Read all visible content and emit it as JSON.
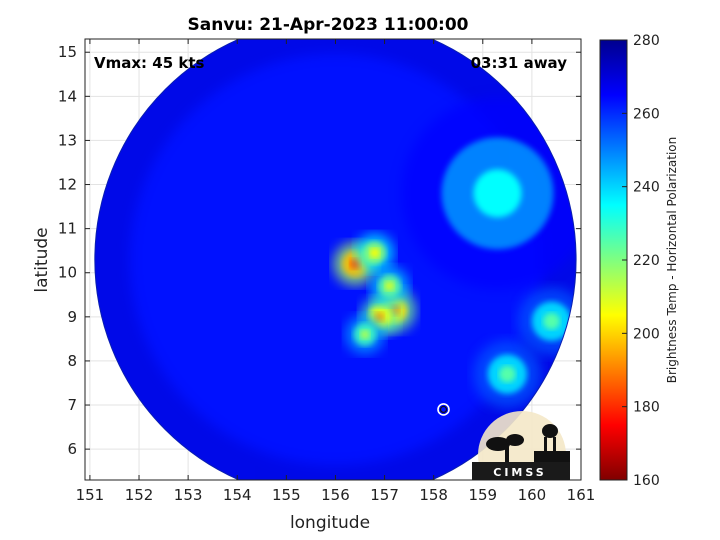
{
  "chart_data": {
    "type": "heatmap",
    "title": "Sanvu: 21-Apr-2023 11:00:00",
    "xlabel": "longitude",
    "ylabel": "latitude",
    "xlim": [
      150.9,
      161.0
    ],
    "ylim": [
      5.3,
      15.3
    ],
    "xticks": [
      151,
      152,
      153,
      154,
      155,
      156,
      157,
      158,
      159,
      160,
      161
    ],
    "yticks": [
      6,
      7,
      8,
      9,
      10,
      11,
      12,
      13,
      14,
      15
    ],
    "grid": true,
    "annotations": {
      "vmax": "Vmax: 45 kts",
      "time_away": "03:31 away"
    },
    "colorbar": {
      "label": "Brightness Temp - Horizontal Polarization",
      "range": [
        160,
        280
      ],
      "ticks": [
        160,
        180,
        200,
        220,
        240,
        260,
        280
      ],
      "colormap": "jet"
    },
    "swath": {
      "center": [
        156.0,
        10.3
      ],
      "radius_deg": 4.9,
      "base_value": 263
    },
    "features": [
      {
        "name": "convective core",
        "lon": 156.4,
        "lat": 10.2,
        "value": 185
      },
      {
        "name": "convective core",
        "lon": 157.2,
        "lat": 9.15,
        "value": 190
      },
      {
        "name": "convective cell",
        "lon": 156.9,
        "lat": 9.0,
        "value": 195
      },
      {
        "name": "convective cell",
        "lon": 156.8,
        "lat": 10.45,
        "value": 205
      },
      {
        "name": "convective cell",
        "lon": 157.1,
        "lat": 9.7,
        "value": 210
      },
      {
        "name": "convective cell",
        "lon": 156.6,
        "lat": 8.6,
        "value": 215
      },
      {
        "name": "rain band",
        "lon": 159.5,
        "lat": 7.7,
        "value": 225
      },
      {
        "name": "rain band",
        "lon": 160.4,
        "lat": 8.9,
        "value": 225
      },
      {
        "name": "cloud band",
        "lon": 159.3,
        "lat": 11.8,
        "value": 235
      }
    ],
    "storm_center_marker": {
      "lon": 158.2,
      "lat": 6.9
    }
  },
  "logo": {
    "text": "CIMSS"
  }
}
